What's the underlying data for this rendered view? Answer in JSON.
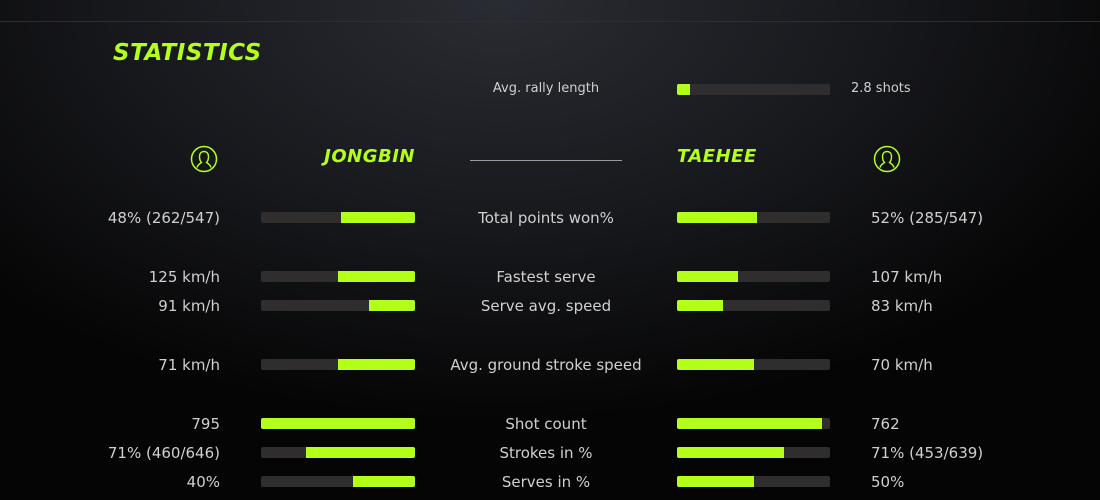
{
  "title": "STATISTICS",
  "accent_color": "#b3ff1a",
  "rally": {
    "label": "Avg. rally length",
    "value": "2.8 shots",
    "fraction": 0.085
  },
  "players": {
    "left": {
      "name": "JONGBIN",
      "icon": "user-circle-icon"
    },
    "right": {
      "name": "TAEHEE",
      "icon": "user-circle-icon"
    }
  },
  "rows": [
    {
      "label": "Total points won%",
      "left": "48% (262/547)",
      "right": "52% (285/547)",
      "left_fraction": 0.48,
      "right_fraction": 0.52
    },
    {
      "label": "Fastest serve",
      "left": "125 km/h",
      "right": "107 km/h",
      "left_fraction": 0.5,
      "right_fraction": 0.4
    },
    {
      "label": "Serve avg. speed",
      "left": "91 km/h",
      "right": "83 km/h",
      "left_fraction": 0.3,
      "right_fraction": 0.3
    },
    {
      "label": "Avg. ground stroke speed",
      "left": "71 km/h",
      "right": "70 km/h",
      "left_fraction": 0.5,
      "right_fraction": 0.5
    },
    {
      "label": "Shot count",
      "left": "795",
      "right": "762",
      "left_fraction": 1.0,
      "right_fraction": 0.95
    },
    {
      "label": "Strokes in %",
      "left": "71% (460/646)",
      "right": "71% (453/639)",
      "left_fraction": 0.71,
      "right_fraction": 0.7
    },
    {
      "label": "Serves in %",
      "left": "40%",
      "right": "50%",
      "left_fraction": 0.4,
      "right_fraction": 0.5
    }
  ]
}
